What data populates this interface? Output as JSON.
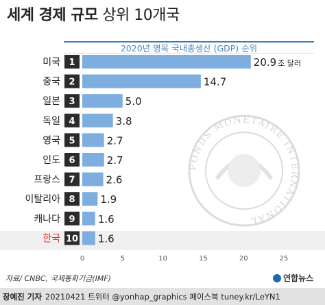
{
  "title": {
    "bold": "세계 경제 규모",
    "light": "상위 10개국"
  },
  "chart_data": {
    "type": "bar",
    "orientation": "horizontal",
    "title": "2020년 명목 국내총생산 (GDP) 순위",
    "categories": [
      "미국",
      "중국",
      "일본",
      "독일",
      "영국",
      "인도",
      "프랑스",
      "이탈리아",
      "캐나다",
      "한국"
    ],
    "ranks": [
      "1",
      "2",
      "3",
      "4",
      "5",
      "6",
      "7",
      "8",
      "9",
      "10"
    ],
    "values": [
      20.9,
      14.7,
      5.0,
      3.8,
      2.7,
      2.7,
      2.6,
      1.9,
      1.6,
      1.6
    ],
    "value_labels": [
      "20.9",
      "14.7",
      "5.0",
      "3.8",
      "2.7",
      "2.7",
      "2.6",
      "1.9",
      "1.6",
      "1.6"
    ],
    "unit_label": "조 달러",
    "xlim": [
      0,
      25
    ],
    "xticks": [
      "0",
      "5",
      "10",
      "15",
      "20",
      "25"
    ],
    "highlight_category": "한국",
    "colors": {
      "bar": "#7eaee0",
      "rank_box": "#2b2b2b",
      "highlight_label": "#d9342b"
    }
  },
  "source": "자료/ CNBC, 국제통화기금(IMF)",
  "footer": {
    "author": "장예진 기자",
    "info": "20210421 트위터 @yonhap_graphics  페이스북 tuney.kr/LeYN1"
  },
  "logo": {
    "text": "연합뉴스"
  },
  "watermark": {
    "text": "FONDS MONETAIRE INTERNATIONAL"
  }
}
